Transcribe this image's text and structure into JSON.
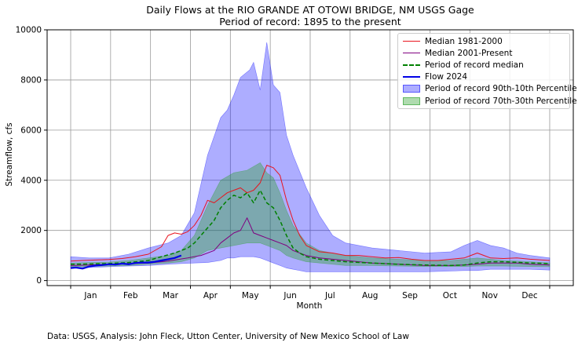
{
  "chart_data": {
    "type": "area",
    "title": "Daily Flows at the RIO GRANDE AT OTOWI BRIDGE, NM USGS Gage",
    "subtitle": "Period of record: 1895 to the present",
    "xlabel": "Month",
    "ylabel": "Streamflow, cfs",
    "ylim": [
      -200,
      10000
    ],
    "y_ticks": [
      0,
      2000,
      4000,
      6000,
      8000,
      10000
    ],
    "x_tick_labels": [
      "Jan",
      "Feb",
      "Mar",
      "Apr",
      "May",
      "Jun",
      "Jul",
      "Aug",
      "Sep",
      "Oct",
      "Nov",
      "Dec"
    ],
    "grid": true,
    "legend_position": "top-right",
    "x_unit": "day of year (approx.)",
    "bands": [
      {
        "name": "Period of record 90th-10th Percentile",
        "color": "#0000ff",
        "opacity": 0.32,
        "x": [
          1,
          15,
          30,
          45,
          60,
          75,
          85,
          95,
          105,
          115,
          120,
          125,
          130,
          137,
          140,
          145,
          150,
          155,
          160,
          165,
          170,
          180,
          190,
          200,
          210,
          230,
          250,
          270,
          290,
          300,
          310,
          320,
          330,
          340,
          350,
          365
        ],
        "upper": [
          950,
          900,
          900,
          1050,
          1300,
          1500,
          1800,
          2700,
          5000,
          6500,
          6800,
          7400,
          8100,
          8400,
          8700,
          7600,
          9500,
          7800,
          7500,
          5800,
          5000,
          3700,
          2600,
          1800,
          1500,
          1300,
          1200,
          1100,
          1150,
          1400,
          1600,
          1400,
          1300,
          1100,
          1000,
          900
        ],
        "lower": [
          500,
          520,
          550,
          580,
          600,
          650,
          680,
          700,
          720,
          800,
          900,
          900,
          950,
          950,
          950,
          900,
          800,
          700,
          600,
          500,
          450,
          350,
          350,
          350,
          350,
          350,
          350,
          350,
          380,
          400,
          400,
          450,
          450,
          450,
          450,
          420
        ]
      },
      {
        "name": "Period of record 70th-30th Percentile",
        "color": "#2ca02c",
        "opacity": 0.38,
        "x": [
          1,
          15,
          30,
          45,
          60,
          75,
          85,
          95,
          105,
          115,
          125,
          135,
          145,
          150,
          155,
          160,
          165,
          170,
          180,
          190,
          200,
          210,
          230,
          250,
          270,
          290,
          300,
          310,
          320,
          330,
          340,
          350,
          365
        ],
        "upper": [
          700,
          720,
          740,
          800,
          900,
          1000,
          1200,
          1800,
          3000,
          4000,
          4300,
          4400,
          4700,
          4300,
          4100,
          3500,
          2800,
          2200,
          1500,
          1200,
          1100,
          1000,
          900,
          850,
          800,
          800,
          850,
          900,
          850,
          800,
          780,
          750,
          700
        ],
        "lower": [
          550,
          560,
          580,
          600,
          650,
          700,
          750,
          900,
          1200,
          1300,
          1400,
          1500,
          1500,
          1400,
          1300,
          1200,
          1000,
          900,
          750,
          700,
          650,
          600,
          600,
          580,
          560,
          560,
          560,
          580,
          580,
          580,
          570,
          560,
          550
        ]
      }
    ],
    "series": [
      {
        "name": "Median 1981-2000",
        "color": "#e8141e",
        "style": "solid",
        "x": [
          1,
          10,
          20,
          30,
          40,
          50,
          60,
          70,
          75,
          80,
          85,
          90,
          95,
          100,
          105,
          110,
          115,
          120,
          125,
          130,
          135,
          140,
          145,
          150,
          155,
          160,
          165,
          170,
          175,
          180,
          190,
          200,
          210,
          220,
          230,
          240,
          250,
          260,
          270,
          280,
          290,
          300,
          305,
          310,
          315,
          320,
          330,
          340,
          350,
          365
        ],
        "y": [
          780,
          800,
          820,
          840,
          880,
          950,
          1050,
          1350,
          1800,
          1900,
          1850,
          1950,
          2200,
          2600,
          3200,
          3100,
          3300,
          3500,
          3600,
          3700,
          3500,
          3600,
          3900,
          4600,
          4500,
          4200,
          3200,
          2400,
          1800,
          1400,
          1150,
          1100,
          1000,
          1000,
          950,
          900,
          920,
          850,
          800,
          800,
          850,
          900,
          1000,
          1100,
          1000,
          900,
          880,
          900,
          850,
          800
        ]
      },
      {
        "name": "Median 2001-Present",
        "color": "#800080",
        "style": "solid",
        "x": [
          1,
          15,
          30,
          45,
          60,
          75,
          90,
          100,
          110,
          115,
          120,
          125,
          130,
          135,
          140,
          145,
          150,
          155,
          160,
          165,
          170,
          180,
          190,
          200,
          210,
          230,
          250,
          270,
          290,
          300,
          310,
          320,
          330,
          340,
          350,
          365
        ],
        "y": [
          600,
          620,
          650,
          680,
          700,
          780,
          900,
          1000,
          1200,
          1500,
          1700,
          1900,
          2000,
          2500,
          1900,
          1800,
          1700,
          1600,
          1500,
          1400,
          1200,
          1000,
          900,
          850,
          800,
          700,
          650,
          600,
          600,
          620,
          650,
          700,
          700,
          700,
          650,
          620
        ]
      },
      {
        "name": "Period of record median",
        "color": "#008000",
        "style": "dashed",
        "x": [
          1,
          15,
          30,
          45,
          60,
          70,
          80,
          90,
          95,
          100,
          105,
          110,
          115,
          120,
          125,
          130,
          135,
          140,
          145,
          150,
          155,
          160,
          165,
          170,
          175,
          180,
          190,
          200,
          210,
          230,
          250,
          270,
          290,
          300,
          310,
          320,
          330,
          340,
          350,
          365
        ],
        "y": [
          650,
          660,
          680,
          720,
          800,
          950,
          1100,
          1300,
          1500,
          1800,
          2100,
          2400,
          2900,
          3200,
          3400,
          3300,
          3500,
          3100,
          3600,
          3100,
          2900,
          2400,
          1800,
          1300,
          1100,
          950,
          850,
          800,
          750,
          700,
          650,
          620,
          600,
          620,
          700,
          750,
          750,
          730,
          700,
          680
        ]
      },
      {
        "name": "Flow 2024",
        "color": "#0000e6",
        "style": "solid",
        "width": 2.2,
        "x": [
          1,
          5,
          10,
          15,
          20,
          25,
          30,
          35,
          40,
          45,
          50,
          55,
          60,
          65,
          70,
          75,
          80,
          85
        ],
        "y": [
          500,
          520,
          480,
          560,
          600,
          620,
          650,
          640,
          680,
          650,
          700,
          720,
          720,
          750,
          800,
          850,
          900,
          1000
        ]
      }
    ],
    "footer": "Data: USGS, Analysis: John Fleck, Utton Center, University of New Mexico School of Law"
  }
}
